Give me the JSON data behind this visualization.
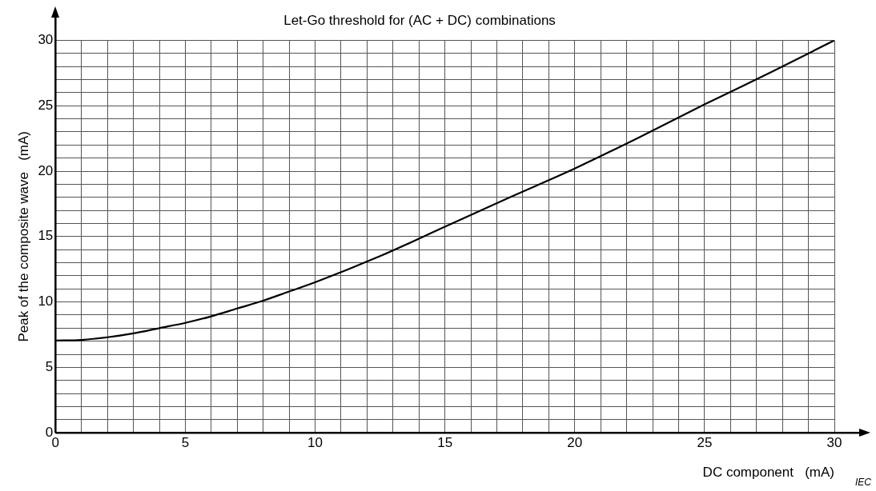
{
  "chart_data": {
    "type": "line",
    "title": "Let-Go threshold for (AC + DC) combinations",
    "xlabel": "DC component   (mA)",
    "ylabel": "Peak of the composite wave   (mA)",
    "annotations": [
      "IEC"
    ],
    "series": [
      {
        "color": "#000000",
        "x": [
          0,
          1,
          2,
          3,
          4,
          5,
          6,
          7,
          8,
          9,
          10,
          12.5,
          15,
          17.5,
          20,
          22.5,
          25,
          27.5,
          30
        ],
        "values": [
          7.05,
          7.1,
          7.3,
          7.6,
          8.0,
          8.4,
          8.9,
          9.5,
          10.1,
          10.8,
          11.5,
          13.5,
          15.75,
          18.0,
          20.2,
          22.6,
          25.1,
          27.5,
          30
        ]
      }
    ],
    "xlim": [
      0,
      30
    ],
    "ylim": [
      0,
      30
    ],
    "xticks": [
      0,
      {
        "value": 1,
        "label": null
      },
      {
        "value": 2,
        "label": null
      },
      {
        "value": 3,
        "label": null
      },
      {
        "value": 4,
        "label": null
      },
      5,
      {
        "value": 6,
        "label": null
      },
      {
        "value": 7,
        "label": null
      },
      {
        "value": 8,
        "label": null
      },
      {
        "value": 9,
        "label": null
      },
      10,
      {
        "value": 11,
        "label": null
      },
      {
        "value": 12,
        "label": null
      },
      {
        "value": 13,
        "label": null
      },
      {
        "value": 14,
        "label": null
      },
      15,
      {
        "value": 16,
        "label": null
      },
      {
        "value": 17,
        "label": null
      },
      {
        "value": 18,
        "label": null
      },
      {
        "value": 19,
        "label": null
      },
      20,
      {
        "value": 21,
        "label": null
      },
      {
        "value": 22,
        "label": null
      },
      {
        "value": 23,
        "label": null
      },
      {
        "value": 24,
        "label": null
      },
      25,
      {
        "value": 26,
        "label": null
      },
      {
        "value": 27,
        "label": null
      },
      {
        "value": 28,
        "label": null
      },
      {
        "value": 29,
        "label": null
      },
      30
    ],
    "yticks": [
      0,
      {
        "value": 1,
        "label": null
      },
      {
        "value": 2,
        "label": null
      },
      {
        "value": 3,
        "label": null
      },
      {
        "value": 4,
        "label": null
      },
      5,
      {
        "value": 6,
        "label": null
      },
      {
        "value": 7,
        "label": null
      },
      {
        "value": 8,
        "label": null
      },
      {
        "value": 9,
        "label": null
      },
      10,
      {
        "value": 11,
        "label": null
      },
      {
        "value": 12,
        "label": null
      },
      {
        "value": 13,
        "label": null
      },
      {
        "value": 14,
        "label": null
      },
      15,
      {
        "value": 16,
        "label": null
      },
      {
        "value": 17,
        "label": null
      },
      {
        "value": 18,
        "label": null
      },
      {
        "value": 19,
        "label": null
      },
      20,
      {
        "value": 21,
        "label": null
      },
      {
        "value": 22,
        "label": null
      },
      {
        "value": 23,
        "label": null
      },
      {
        "value": 24,
        "label": null
      },
      25,
      {
        "value": 26,
        "label": null
      },
      {
        "value": 27,
        "label": null
      },
      {
        "value": 28,
        "label": null
      },
      {
        "value": 29,
        "label": null
      },
      30
    ],
    "grid": true,
    "marker": "none",
    "line_style": "solid"
  }
}
